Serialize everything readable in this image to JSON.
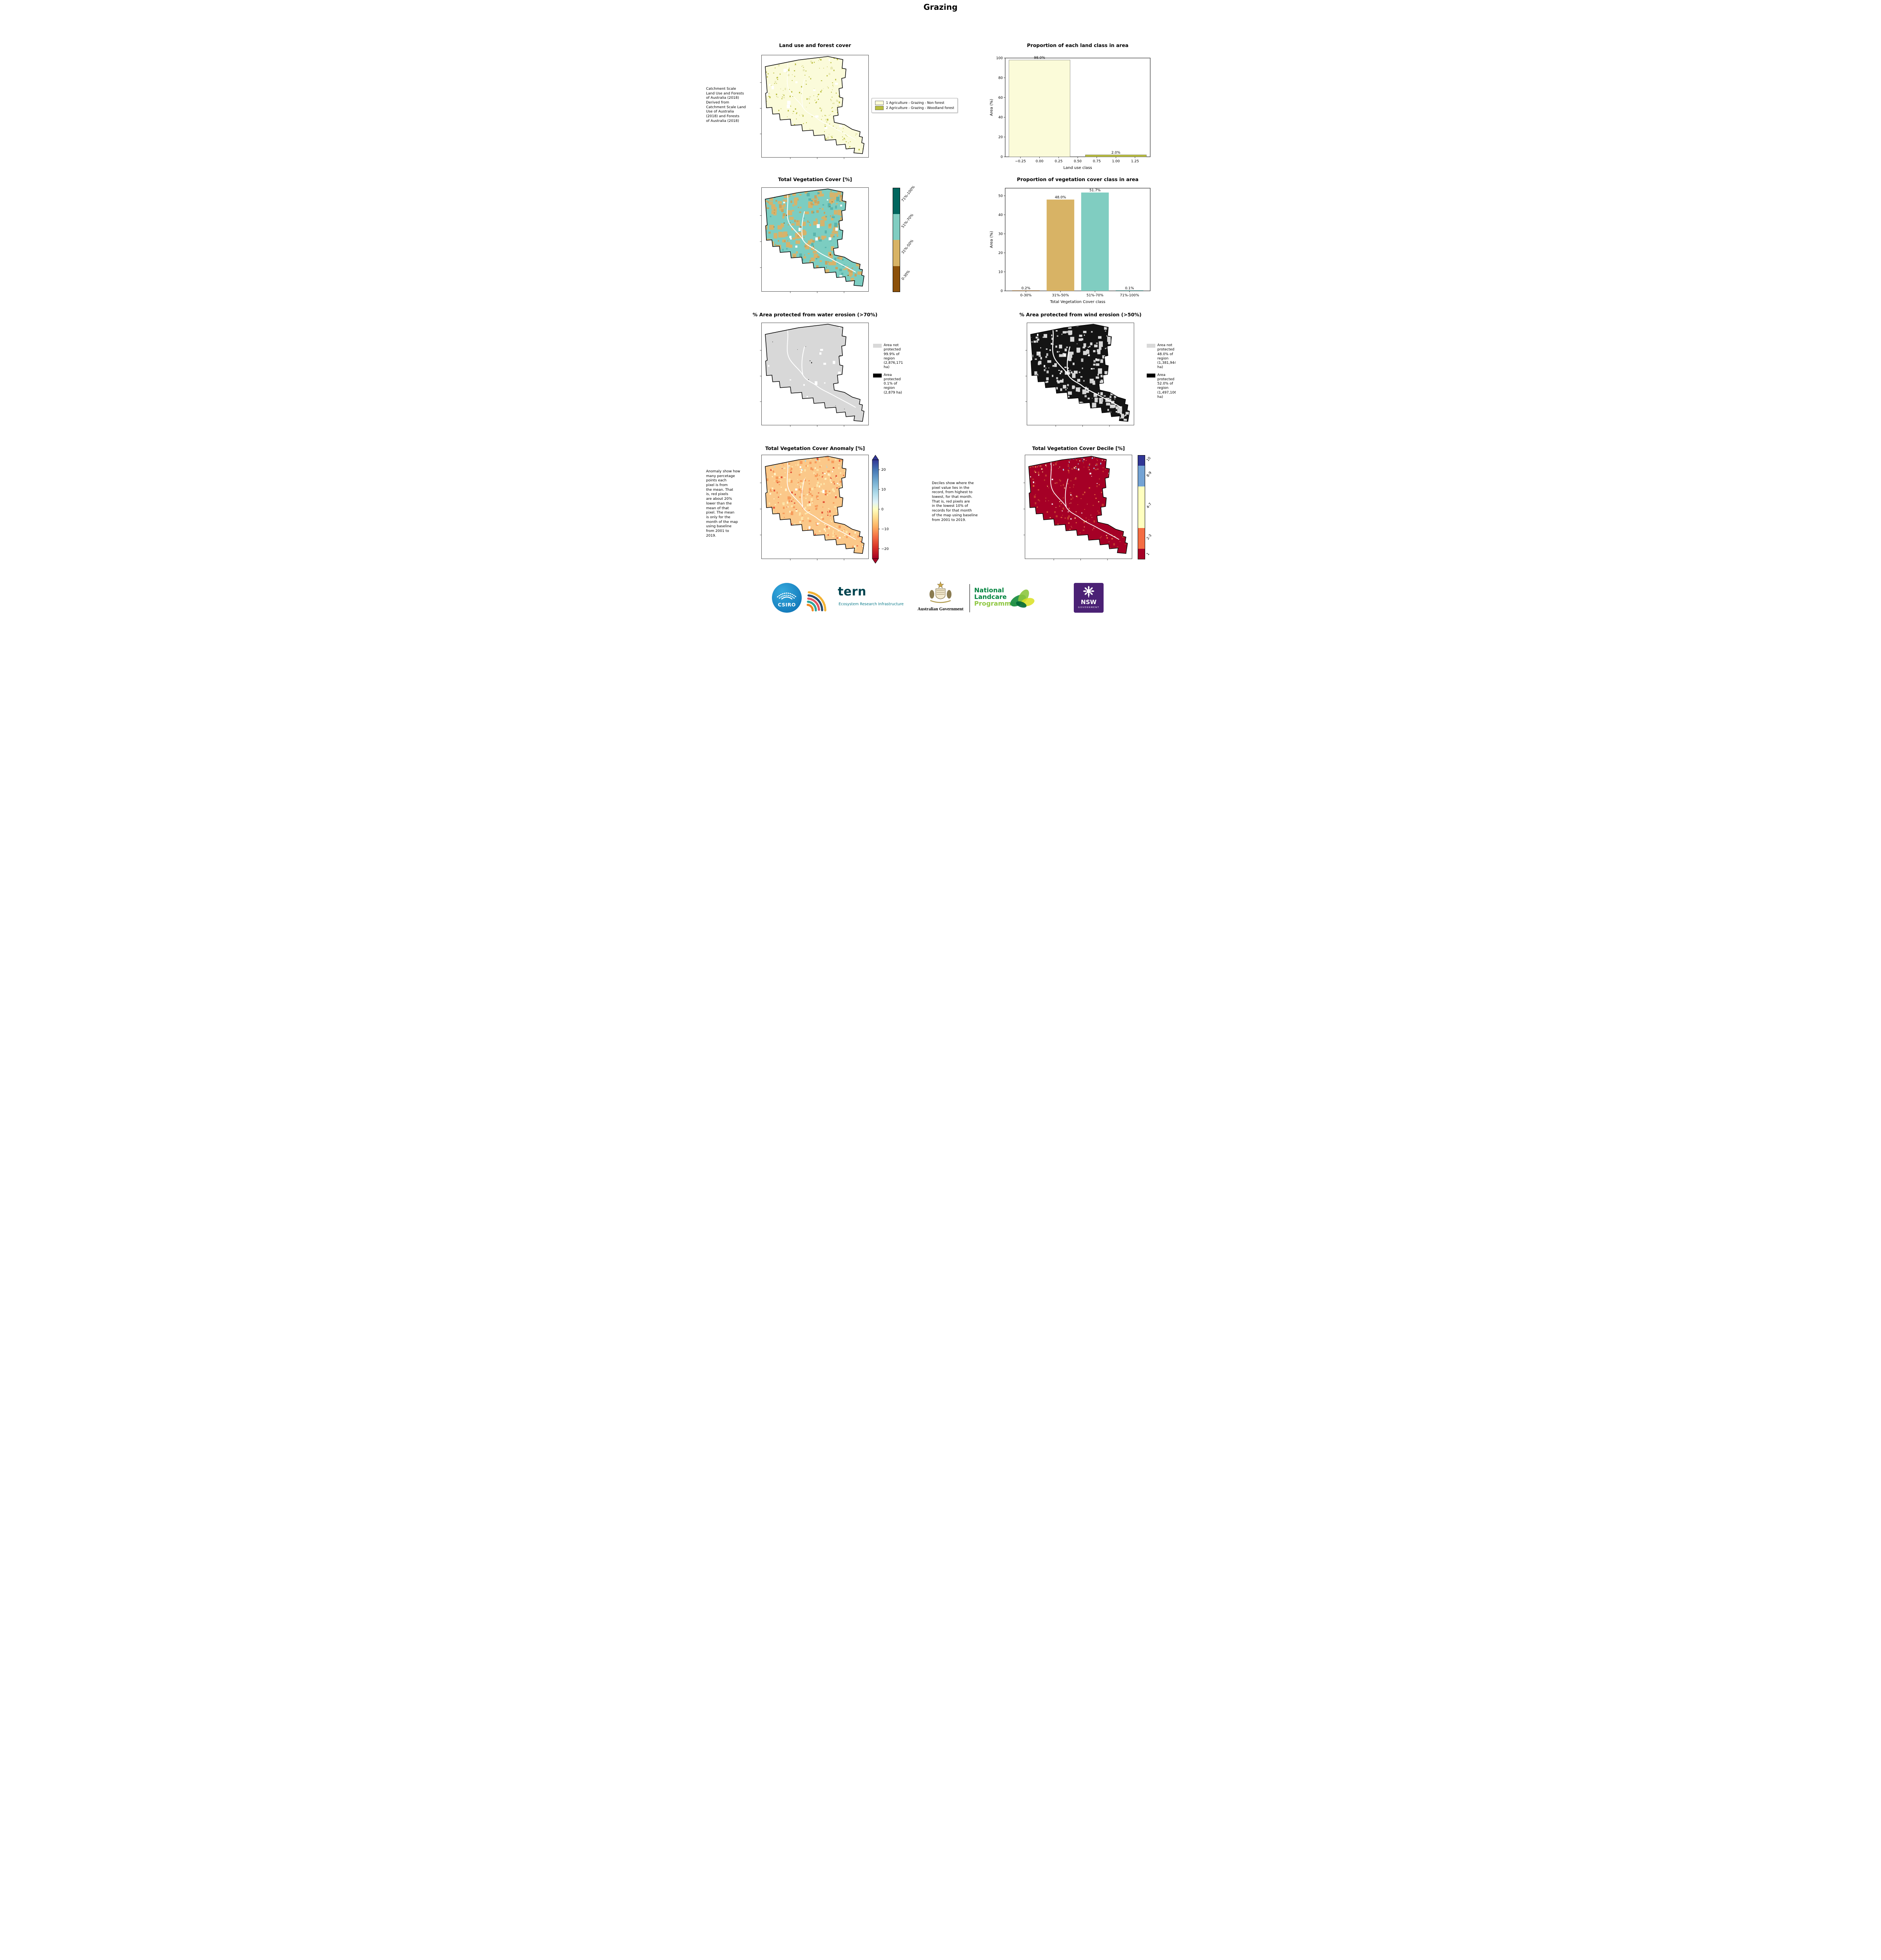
{
  "title": "Grazing",
  "panels": {
    "landuse_map": {
      "title": "Land use and forest cover",
      "caption": "Catchment Scale\nLand Use and Forests\nof Australia (2018)\nDerived from\nCatchment Scale Land\nUse of Australia\n(2018) and Forests\nof Australia (2018)",
      "legend": [
        {
          "label": "1 Agriculture - Grazing - Non forest",
          "color": "#fbfbd9"
        },
        {
          "label": "2 Agriculture - Grazing - Woodland forest",
          "color": "#b9bd3c"
        }
      ]
    },
    "vegcover_map": {
      "title": "Total Vegetation Cover [%]",
      "colorbar": [
        {
          "label": "71%-100%",
          "color": "#01665e"
        },
        {
          "label": "51%-70%",
          "color": "#80cdc1"
        },
        {
          "label": "31%-50%",
          "color": "#d8b365"
        },
        {
          "label": "0-30%",
          "color": "#8c510a"
        }
      ]
    },
    "water_map": {
      "title": "% Area protected from water erosion (>70%)",
      "legend": [
        {
          "label": "Area not protected 99.9% of region (2,876,171 ha)",
          "color": "#d9d9d9"
        },
        {
          "label": "Area protected 0.1% of region (2,879 ha)",
          "color": "#000000"
        }
      ]
    },
    "wind_map": {
      "title": "% Area protected from wind erosion (>50%)",
      "legend": [
        {
          "label": "Area not protected 48.0% of region (1,381,944 ha)",
          "color": "#d9d9d9"
        },
        {
          "label": "Area protected 52.0% of region (1,497,106 ha)",
          "color": "#000000"
        }
      ]
    },
    "anomaly_map": {
      "title": "Total Vegetation Cover Anomaly [%]",
      "caption": "Anomaly show how\nmany percetage\npoints each\npixel is from\nthe mean. That\nis, red pixels\nare about 20%\nlower than the\nmean of that\npixel. The mean\nis only for the\nmonth of the map\nusing baseline\nfrom 2001 to\n2019.",
      "colorbar_ticks": [
        {
          "value": 20,
          "label": "20"
        },
        {
          "value": 10,
          "label": "10"
        },
        {
          "value": 0,
          "label": "0"
        },
        {
          "value": -10,
          "label": "−10"
        },
        {
          "value": -20,
          "label": "−20"
        }
      ]
    },
    "decile_map": {
      "title": "Total Vegetation Cover Decile [%]",
      "caption": "Deciles show where the\npixel value lies in the\nrecord, from highest to\nlowest, for that month.\nThat is, red pixels are\nin the lowest 10% of\nrecords for that month\nof the map using baseline\nfrom 2001 to 2019.",
      "colorbar": [
        {
          "label": "10",
          "color": "#313695",
          "span": 1
        },
        {
          "label": "8-9",
          "color": "#74a3d4",
          "span": 2
        },
        {
          "label": "4-7",
          "color": "#ffffbf",
          "span": 4
        },
        {
          "label": "2-3",
          "color": "#f46d43",
          "span": 2
        },
        {
          "label": "1",
          "color": "#a50026",
          "span": 1
        }
      ]
    }
  },
  "chart_data": [
    {
      "type": "bar",
      "title": "Proportion of each land class in area",
      "xlabel": "Land use class",
      "ylabel": "Area (%)",
      "ylim": [
        0,
        100
      ],
      "yticks": [
        0,
        20,
        40,
        60,
        80,
        100
      ],
      "xlim": [
        -0.45,
        1.45
      ],
      "xticks": [
        -0.25,
        0,
        0.25,
        0.5,
        0.75,
        1,
        1.25
      ],
      "xtick_labels": [
        "−0.25",
        "0.00",
        "0.25",
        "0.50",
        "0.75",
        "1.00",
        "1.25"
      ],
      "bar_width": 0.8,
      "bars": [
        {
          "x": 0,
          "value": 98.0,
          "label": "98.0%",
          "color": "#fbfbd9"
        },
        {
          "x": 1,
          "value": 2.0,
          "label": "2.0%",
          "color": "#b9bd3c"
        }
      ]
    },
    {
      "type": "bar",
      "title": "Proportion of vegetation cover class in area",
      "xlabel": "Total Vegetation Cover class",
      "ylabel": "Area (%)",
      "ylim": [
        0,
        54
      ],
      "yticks": [
        0,
        10,
        20,
        30,
        40,
        50
      ],
      "bar_width": 0.8,
      "categories": [
        "0-30%",
        "31%-50%",
        "51%-70%",
        "71%-100%"
      ],
      "values": [
        0.2,
        48.0,
        51.7,
        0.1
      ],
      "labels": [
        "0.2%",
        "48.0%",
        "51.7%",
        "0.1%"
      ],
      "colors": [
        "#8c510a",
        "#d8b365",
        "#80cdc1",
        "#01665e"
      ]
    }
  ],
  "footer": {
    "csiro": "CSIRO",
    "tern": "tern",
    "tern_sub": "Ecosystem Research Infrastructure",
    "aus_gov": "Australian Government",
    "landcare_line1": "National",
    "landcare_line2": "Landcare",
    "landcare_line3": "Programme",
    "nsw": "NSW",
    "nsw_sub": "GOVERNMENT"
  }
}
